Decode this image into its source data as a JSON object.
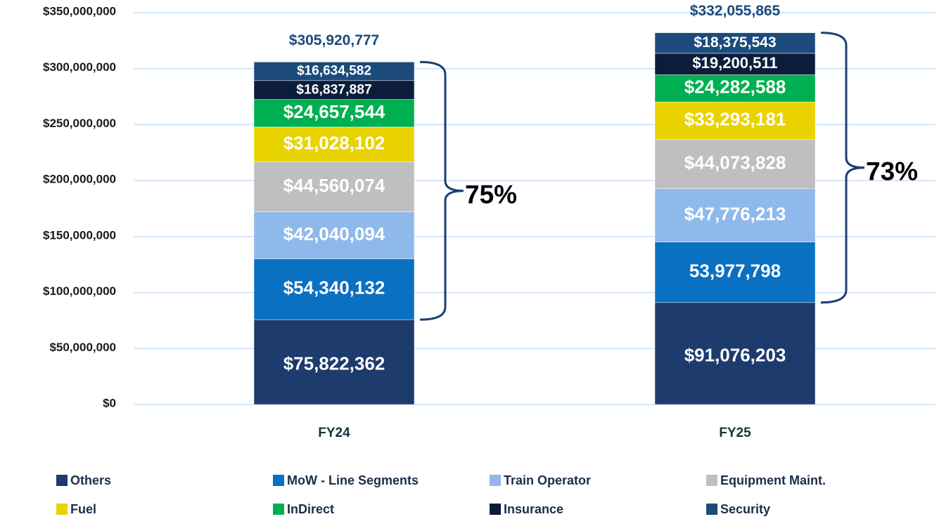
{
  "chart_data": {
    "type": "stacked_bar",
    "categories": [
      "FY24",
      "FY25"
    ],
    "series": [
      {
        "name": "Others",
        "color": "#1d3b6c",
        "values": [
          75822362,
          91076203
        ],
        "value_labels": [
          "$75,822,362",
          "$91,076,203"
        ]
      },
      {
        "name": "MoW - Line Segments",
        "color": "#0a70c2",
        "values": [
          54340132,
          53977798
        ],
        "value_labels": [
          "$54,340,132",
          "53,977,798"
        ]
      },
      {
        "name": "Train Operator",
        "color": "#8fb9eb",
        "values": [
          42040094,
          47776213
        ],
        "value_labels": [
          "$42,040,094",
          "$47,776,213"
        ]
      },
      {
        "name": "Equipment Maint.",
        "color": "#bfbfbf",
        "values": [
          44560074,
          44073828
        ],
        "value_labels": [
          "$44,560,074",
          "$44,073,828"
        ]
      },
      {
        "name": "Fuel",
        "color": "#e8d300",
        "values": [
          31028102,
          33293181
        ],
        "value_labels": [
          "$31,028,102",
          "$33,293,181"
        ]
      },
      {
        "name": "InDirect",
        "color": "#00b050",
        "values": [
          24657544,
          24282588
        ],
        "value_labels": [
          "$24,657,544",
          "$24,282,588"
        ]
      },
      {
        "name": "Insurance",
        "color": "#0b1d3b",
        "values": [
          16837887,
          19200511
        ],
        "value_labels": [
          "$16,837,887",
          "$19,200,511"
        ]
      },
      {
        "name": "Security",
        "color": "#1c4b7b",
        "values": [
          16634582,
          18375543
        ],
        "value_labels": [
          "$16,634,582",
          "$18,375,543"
        ]
      }
    ],
    "totals": [
      305920777,
      332055865
    ],
    "total_labels": [
      "$305,920,777",
      "$332,055,865"
    ],
    "annotations": [
      "75%",
      "73%"
    ],
    "ylim": [
      0,
      350000000
    ],
    "yticks": [
      {
        "value": 0,
        "label": "$0"
      },
      {
        "value": 50000000,
        "label": "$50,000,000"
      },
      {
        "value": 100000000,
        "label": "$100,000,000"
      },
      {
        "value": 150000000,
        "label": "$150,000,000"
      },
      {
        "value": 200000000,
        "label": "$200,000,000"
      },
      {
        "value": 250000000,
        "label": "$250,000,000"
      },
      {
        "value": 300000000,
        "label": "$300,000,000"
      },
      {
        "value": 350000000,
        "label": "$350,000,000"
      }
    ],
    "grid": true,
    "legend": "bottom"
  }
}
